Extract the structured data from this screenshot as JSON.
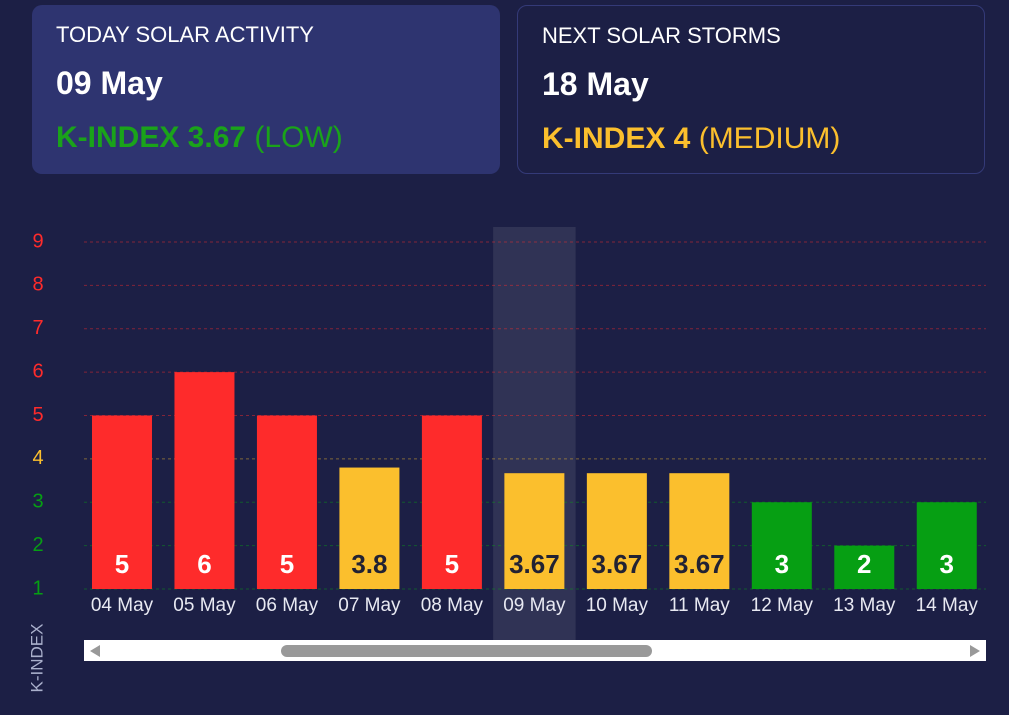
{
  "cards": [
    {
      "title": "TODAY SOLAR ACTIVITY",
      "date": "09 May",
      "index": "K-INDEX 3.67",
      "level": "(LOW)",
      "color": "#1aa31a"
    },
    {
      "title": "NEXT SOLAR STORMS",
      "date": "18 May",
      "index": "K-INDEX 4",
      "level": "(MEDIUM)",
      "color": "#fbbf2d"
    }
  ],
  "chart_data": {
    "type": "bar",
    "y_label": "K-INDEX",
    "categories": [
      "04 May",
      "05 May",
      "06 May",
      "07 May",
      "08 May",
      "09 May",
      "10 May",
      "11 May",
      "12 May",
      "13 May",
      "14 May"
    ],
    "values": [
      5,
      6,
      5,
      3.8,
      5,
      3.67,
      3.67,
      3.67,
      3,
      2,
      3
    ],
    "colors": [
      "#fe2b2b",
      "#fe2b2b",
      "#fe2b2b",
      "#fbbf2d",
      "#fe2b2b",
      "#fbbf2d",
      "#fbbf2d",
      "#fbbf2d",
      "#069f13",
      "#069f13",
      "#069f13"
    ],
    "value_label_colors": [
      "#ffffff",
      "#ffffff",
      "#ffffff",
      "#222233",
      "#ffffff",
      "#222233",
      "#222233",
      "#222233",
      "#ffffff",
      "#ffffff",
      "#ffffff"
    ],
    "ylim": [
      1,
      9
    ],
    "yticks": [
      1,
      2,
      3,
      4,
      5,
      6,
      7,
      8,
      9
    ],
    "ytick_colors": [
      "#069f13",
      "#069f13",
      "#069f13",
      "#fbbf2d",
      "#fe2b2b",
      "#fe2b2b",
      "#fe2b2b",
      "#fe2b2b",
      "#fe2b2b"
    ],
    "grid": true,
    "highlight_index": 5
  }
}
